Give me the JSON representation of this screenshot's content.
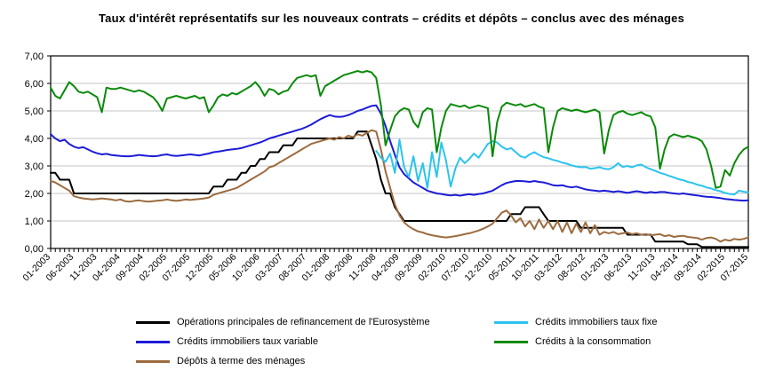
{
  "title": "Taux d'intérêt représentatifs sur les nouveaux contrats – crédits et dépôts – conclus avec des ménages",
  "colors": {
    "grid": "#c6c6c6",
    "axis": "#000000"
  },
  "legend": {
    "columns": [
      [
        0,
        1,
        2
      ],
      [
        3,
        4
      ]
    ]
  },
  "chart_data": {
    "type": "line",
    "x_unit": "month",
    "x_start": "01-2003",
    "x_end": "07-2015",
    "x_tick_every": 5,
    "x_tick_labels": [
      "01-2003",
      "06-2003",
      "11-2003",
      "04-2004",
      "09-2004",
      "02-2005",
      "07-2005",
      "12-2005",
      "05-2006",
      "10-2006",
      "03-2007",
      "08-2007",
      "01-2008",
      "06-2008",
      "11-2008",
      "04-2009",
      "09-2009",
      "02-2010",
      "07-2010",
      "12-2010",
      "05-2011",
      "10-2011",
      "03-2012",
      "08-2012",
      "01-2013",
      "06-2013",
      "11-2013",
      "04-2014",
      "09-2014",
      "02-2015",
      "07-2015"
    ],
    "ylim": [
      0,
      7
    ],
    "y_tick_labels": [
      "0,00",
      "1,00",
      "2,00",
      "3,00",
      "4,00",
      "5,00",
      "6,00",
      "7,00"
    ],
    "grid": "horizontal",
    "legend_position": "bottom",
    "series": [
      {
        "id": "mro",
        "name": "Opérations principales de refinancement de l'Eurosystème",
        "color": "#000000",
        "values": [
          2.75,
          2.75,
          2.5,
          2.5,
          2.5,
          2,
          2,
          2,
          2,
          2,
          2,
          2,
          2,
          2,
          2,
          2,
          2,
          2,
          2,
          2,
          2,
          2,
          2,
          2,
          2,
          2,
          2,
          2,
          2,
          2,
          2,
          2,
          2,
          2,
          2,
          2.25,
          2.25,
          2.25,
          2.5,
          2.5,
          2.5,
          2.75,
          2.75,
          3,
          3,
          3.25,
          3.25,
          3.5,
          3.5,
          3.5,
          3.75,
          3.75,
          3.75,
          4,
          4,
          4,
          4,
          4,
          4,
          4,
          4,
          4,
          4,
          4,
          4,
          4,
          4.25,
          4.25,
          4.25,
          3.75,
          3.25,
          2.5,
          2,
          2,
          1.5,
          1.25,
          1,
          1,
          1,
          1,
          1,
          1,
          1,
          1,
          1,
          1,
          1,
          1,
          1,
          1,
          1,
          1,
          1,
          1,
          1,
          1,
          1,
          1,
          1,
          1.25,
          1.25,
          1.25,
          1.5,
          1.5,
          1.5,
          1.5,
          1.25,
          1,
          1,
          1,
          1,
          1,
          1,
          1,
          0.75,
          0.75,
          0.75,
          0.75,
          0.75,
          0.75,
          0.75,
          0.75,
          0.75,
          0.75,
          0.5,
          0.5,
          0.5,
          0.5,
          0.5,
          0.5,
          0.25,
          0.25,
          0.25,
          0.25,
          0.25,
          0.25,
          0.25,
          0.15,
          0.15,
          0.15,
          0.05,
          0.05,
          0.05,
          0.05,
          0.05,
          0.05,
          0.05,
          0.05,
          0.05,
          0.05,
          0.05
        ]
      },
      {
        "id": "variable",
        "name": "Crédits immobiliers taux variable",
        "color": "#1c1cd6",
        "values": [
          4.15,
          4.0,
          3.9,
          3.95,
          3.8,
          3.7,
          3.65,
          3.68,
          3.6,
          3.52,
          3.46,
          3.42,
          3.44,
          3.4,
          3.38,
          3.36,
          3.35,
          3.35,
          3.37,
          3.4,
          3.38,
          3.36,
          3.35,
          3.36,
          3.4,
          3.42,
          3.38,
          3.36,
          3.38,
          3.4,
          3.42,
          3.4,
          3.38,
          3.42,
          3.45,
          3.5,
          3.52,
          3.55,
          3.58,
          3.6,
          3.62,
          3.65,
          3.7,
          3.75,
          3.8,
          3.85,
          3.92,
          4.0,
          4.05,
          4.1,
          4.15,
          4.2,
          4.25,
          4.3,
          4.35,
          4.42,
          4.5,
          4.6,
          4.7,
          4.78,
          4.85,
          4.8,
          4.78,
          4.8,
          4.85,
          4.92,
          5.0,
          5.05,
          5.12,
          5.18,
          5.2,
          4.9,
          4.45,
          3.9,
          3.4,
          2.95,
          2.7,
          2.55,
          2.4,
          2.3,
          2.2,
          2.1,
          2.05,
          2.0,
          1.98,
          1.95,
          1.93,
          1.95,
          1.92,
          1.95,
          1.97,
          1.95,
          1.98,
          2.0,
          2.05,
          2.1,
          2.2,
          2.3,
          2.38,
          2.42,
          2.45,
          2.45,
          2.44,
          2.42,
          2.45,
          2.42,
          2.4,
          2.35,
          2.3,
          2.28,
          2.3,
          2.25,
          2.22,
          2.25,
          2.2,
          2.15,
          2.12,
          2.1,
          2.08,
          2.1,
          2.08,
          2.05,
          2.08,
          2.05,
          2.02,
          2.05,
          2.08,
          2.05,
          2.02,
          2.05,
          2.03,
          2.05,
          2.05,
          2.02,
          2.0,
          1.98,
          2.0,
          1.97,
          1.95,
          1.93,
          1.9,
          1.88,
          1.87,
          1.85,
          1.83,
          1.8,
          1.78,
          1.76,
          1.75,
          1.74,
          1.75
        ]
      },
      {
        "id": "depots",
        "name": "Dépôts à terme des ménages",
        "color": "#9c6b3f",
        "values": [
          2.45,
          2.4,
          2.3,
          2.2,
          2.1,
          1.9,
          1.85,
          1.82,
          1.8,
          1.78,
          1.8,
          1.82,
          1.8,
          1.78,
          1.75,
          1.78,
          1.72,
          1.7,
          1.73,
          1.75,
          1.72,
          1.7,
          1.72,
          1.74,
          1.75,
          1.78,
          1.75,
          1.73,
          1.75,
          1.78,
          1.76,
          1.78,
          1.8,
          1.82,
          1.85,
          1.95,
          2.0,
          2.05,
          2.1,
          2.15,
          2.2,
          2.3,
          2.4,
          2.5,
          2.6,
          2.7,
          2.8,
          2.95,
          3.0,
          3.1,
          3.2,
          3.3,
          3.4,
          3.5,
          3.6,
          3.7,
          3.8,
          3.85,
          3.9,
          3.95,
          4.0,
          3.95,
          4.05,
          4.0,
          4.1,
          4.05,
          4.15,
          4.1,
          4.2,
          4.3,
          4.25,
          3.6,
          2.8,
          2.2,
          1.6,
          1.2,
          0.95,
          0.8,
          0.7,
          0.62,
          0.58,
          0.52,
          0.48,
          0.45,
          0.42,
          0.4,
          0.42,
          0.45,
          0.48,
          0.52,
          0.55,
          0.6,
          0.65,
          0.72,
          0.8,
          0.9,
          1.1,
          1.3,
          1.38,
          1.2,
          0.95,
          1.1,
          0.8,
          1.0,
          0.7,
          1.05,
          0.75,
          1.0,
          0.7,
          1.0,
          0.6,
          0.95,
          0.55,
          0.9,
          0.6,
          0.95,
          0.55,
          0.85,
          0.5,
          0.6,
          0.55,
          0.6,
          0.52,
          0.55,
          0.58,
          0.52,
          0.55,
          0.5,
          0.52,
          0.48,
          0.5,
          0.52,
          0.45,
          0.48,
          0.42,
          0.45,
          0.46,
          0.42,
          0.4,
          0.38,
          0.32,
          0.38,
          0.4,
          0.35,
          0.25,
          0.32,
          0.28,
          0.35,
          0.32,
          0.35,
          0.4
        ]
      },
      {
        "id": "fixe",
        "name": "Crédits immobiliers taux fixe",
        "color": "#2cc4ee",
        "values": [
          null,
          null,
          null,
          null,
          null,
          null,
          null,
          null,
          null,
          null,
          null,
          null,
          null,
          null,
          null,
          null,
          null,
          null,
          null,
          null,
          null,
          null,
          null,
          null,
          null,
          null,
          null,
          null,
          null,
          null,
          null,
          null,
          null,
          null,
          null,
          null,
          null,
          null,
          null,
          null,
          null,
          null,
          null,
          null,
          null,
          null,
          null,
          null,
          null,
          null,
          null,
          null,
          null,
          null,
          null,
          null,
          null,
          null,
          null,
          null,
          null,
          null,
          null,
          null,
          null,
          null,
          null,
          null,
          null,
          null,
          3.55,
          3.3,
          3.15,
          3.45,
          2.75,
          3.95,
          2.95,
          2.6,
          3.35,
          2.45,
          3.1,
          2.2,
          3.5,
          2.6,
          3.85,
          3.2,
          2.25,
          2.9,
          3.3,
          3.1,
          3.25,
          3.45,
          3.3,
          3.55,
          3.8,
          3.9,
          3.85,
          3.7,
          3.6,
          3.65,
          3.5,
          3.35,
          3.3,
          3.42,
          3.5,
          3.4,
          3.32,
          3.28,
          3.22,
          3.18,
          3.12,
          3.08,
          3.02,
          2.98,
          2.95,
          2.96,
          2.9,
          2.92,
          2.95,
          2.9,
          2.88,
          2.95,
          3.1,
          2.96,
          3.0,
          2.95,
          3.02,
          3.05,
          2.95,
          2.88,
          2.82,
          2.75,
          2.7,
          2.64,
          2.58,
          2.52,
          2.48,
          2.42,
          2.38,
          2.32,
          2.28,
          2.22,
          2.18,
          2.12,
          2.08,
          2.02,
          1.98,
          1.96,
          2.1,
          2.06,
          2.04
        ]
      },
      {
        "id": "conso",
        "name": "Crédits à la consommation",
        "color": "#0a8a0a",
        "values": [
          5.85,
          5.55,
          5.45,
          5.75,
          6.05,
          5.9,
          5.7,
          5.65,
          5.7,
          5.6,
          5.5,
          4.95,
          5.85,
          5.8,
          5.8,
          5.85,
          5.8,
          5.75,
          5.7,
          5.75,
          5.7,
          5.6,
          5.5,
          5.3,
          5.0,
          5.45,
          5.5,
          5.55,
          5.5,
          5.45,
          5.5,
          5.55,
          5.45,
          5.5,
          4.95,
          5.2,
          5.5,
          5.6,
          5.55,
          5.65,
          5.6,
          5.7,
          5.8,
          5.9,
          6.05,
          5.85,
          5.55,
          5.8,
          5.75,
          5.6,
          5.7,
          5.75,
          6.0,
          6.2,
          6.25,
          6.3,
          6.25,
          6.3,
          5.55,
          5.9,
          6.0,
          6.1,
          6.2,
          6.3,
          6.35,
          6.4,
          6.45,
          6.4,
          6.45,
          6.4,
          6.2,
          5.2,
          3.75,
          4.3,
          4.8,
          5.0,
          5.1,
          5.05,
          4.6,
          4.4,
          4.95,
          5.1,
          5.05,
          3.5,
          4.4,
          5.0,
          5.25,
          5.2,
          5.15,
          5.2,
          5.1,
          5.15,
          5.2,
          5.15,
          5.1,
          3.35,
          4.6,
          5.15,
          5.3,
          5.25,
          5.2,
          5.25,
          5.15,
          5.2,
          5.25,
          5.15,
          5.1,
          3.5,
          4.4,
          5.0,
          5.1,
          5.05,
          5.0,
          5.05,
          5.0,
          4.95,
          5.0,
          5.05,
          4.95,
          3.45,
          4.3,
          4.85,
          4.95,
          5.0,
          4.9,
          4.85,
          4.9,
          4.95,
          4.85,
          4.8,
          4.4,
          2.9,
          3.6,
          4.05,
          4.15,
          4.1,
          4.05,
          4.1,
          4.05,
          4.0,
          3.9,
          3.6,
          3.0,
          2.2,
          2.25,
          2.85,
          2.65,
          3.1,
          3.4,
          3.6,
          3.7
        ]
      }
    ]
  }
}
